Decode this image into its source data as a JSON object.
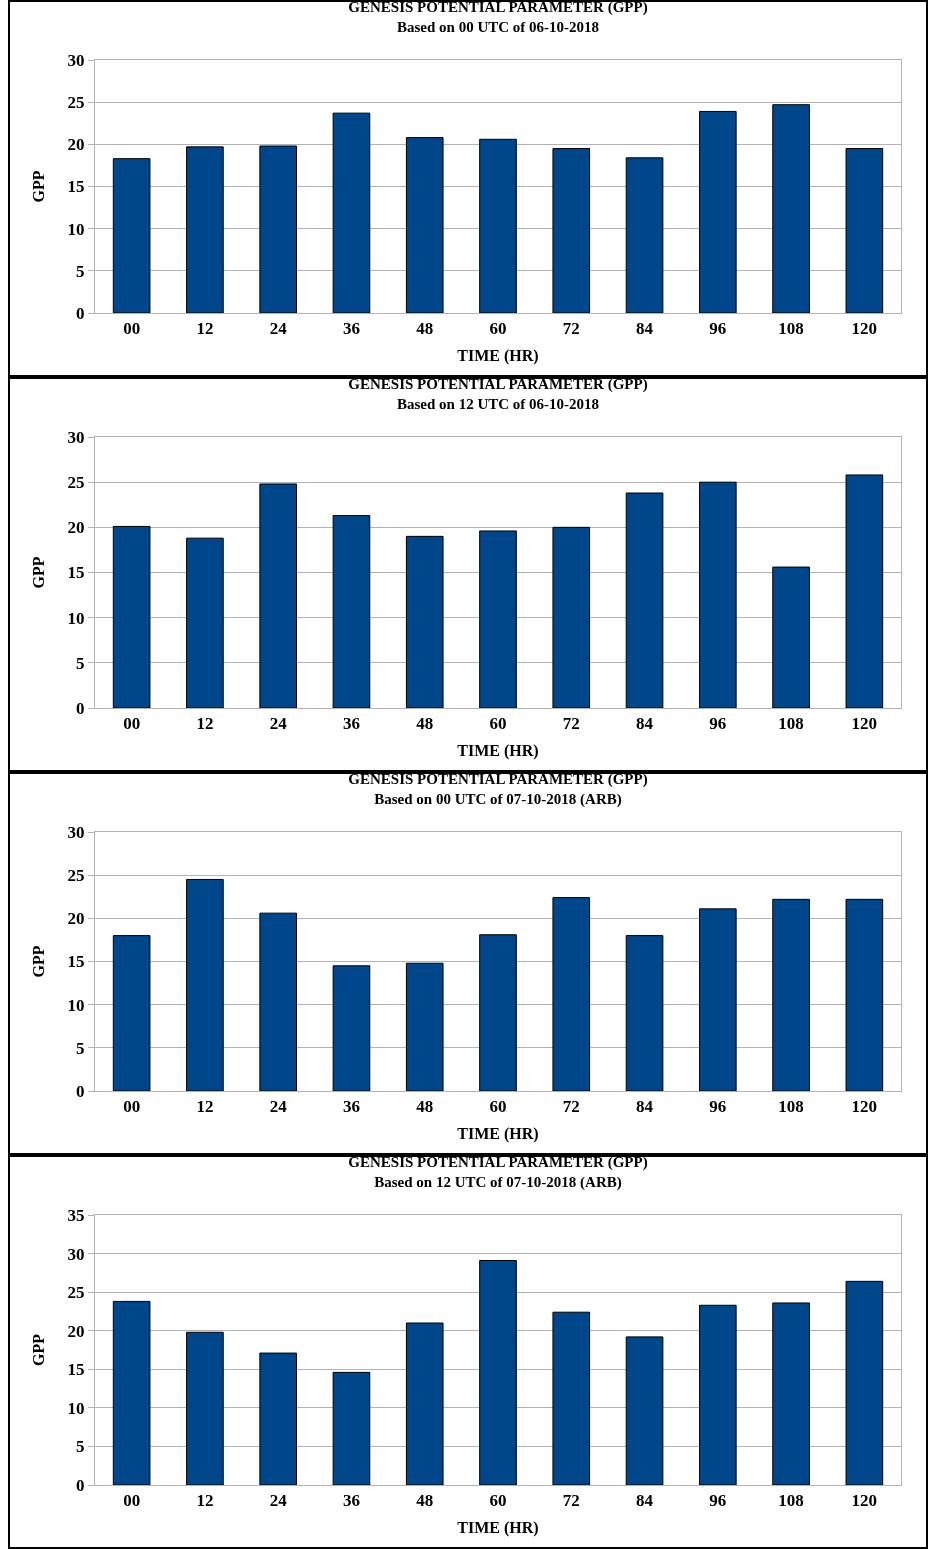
{
  "chart_data": [
    {
      "type": "bar",
      "title": "GENESIS POTENTIAL PARAMETER (GPP)",
      "subtitle": "Based on 00 UTC of 06-10-2018",
      "xlabel": "TIME (HR)",
      "ylabel": "GPP",
      "categories": [
        "00",
        "12",
        "24",
        "36",
        "48",
        "60",
        "72",
        "84",
        "96",
        "108",
        "120"
      ],
      "values": [
        18.3,
        19.7,
        19.8,
        23.7,
        20.8,
        20.6,
        19.5,
        18.4,
        23.9,
        24.7,
        19.5
      ],
      "color": "#00468b",
      "ylim": [
        0,
        30
      ],
      "yticks": [
        0,
        5,
        10,
        15,
        20,
        25,
        30
      ],
      "grid": "y",
      "legend": false
    },
    {
      "type": "bar",
      "title": "GENESIS POTENTIAL PARAMETER (GPP)",
      "subtitle": "Based on 12 UTC of 06-10-2018",
      "xlabel": "TIME (HR)",
      "ylabel": "GPP",
      "categories": [
        "00",
        "12",
        "24",
        "36",
        "48",
        "60",
        "72",
        "84",
        "96",
        "108",
        "120"
      ],
      "values": [
        20.1,
        18.8,
        24.8,
        21.3,
        19.0,
        19.6,
        20.0,
        23.8,
        25.0,
        15.6,
        25.8
      ],
      "color": "#00468b",
      "ylim": [
        0,
        30
      ],
      "yticks": [
        0,
        5,
        10,
        15,
        20,
        25,
        30
      ],
      "grid": "y",
      "legend": false
    },
    {
      "type": "bar",
      "title": "GENESIS POTENTIAL PARAMETER (GPP)",
      "subtitle": "Based on 00 UTC of 07-10-2018 (ARB)",
      "xlabel": "TIME (HR)",
      "ylabel": "GPP",
      "categories": [
        "00",
        "12",
        "24",
        "36",
        "48",
        "60",
        "72",
        "84",
        "96",
        "108",
        "120"
      ],
      "values": [
        18.0,
        24.5,
        20.6,
        14.5,
        14.8,
        18.1,
        22.4,
        18.0,
        21.1,
        22.2,
        22.2
      ],
      "color": "#00468b",
      "ylim": [
        0,
        30
      ],
      "yticks": [
        0,
        5,
        10,
        15,
        20,
        25,
        30
      ],
      "grid": "y",
      "legend": false
    },
    {
      "type": "bar",
      "title": "GENESIS POTENTIAL PARAMETER (GPP)",
      "subtitle": "Based on 12 UTC of 07-10-2018 (ARB)",
      "xlabel": "TIME (HR)",
      "ylabel": "GPP",
      "categories": [
        "00",
        "12",
        "24",
        "36",
        "48",
        "60",
        "72",
        "84",
        "96",
        "108",
        "120"
      ],
      "values": [
        23.8,
        19.8,
        17.1,
        14.6,
        21.0,
        29.1,
        22.4,
        19.2,
        23.3,
        23.6,
        26.4
      ],
      "color": "#00468b",
      "ylim": [
        0,
        35
      ],
      "yticks": [
        0,
        5,
        10,
        15,
        20,
        25,
        30,
        35
      ],
      "grid": "y",
      "legend": false
    }
  ]
}
